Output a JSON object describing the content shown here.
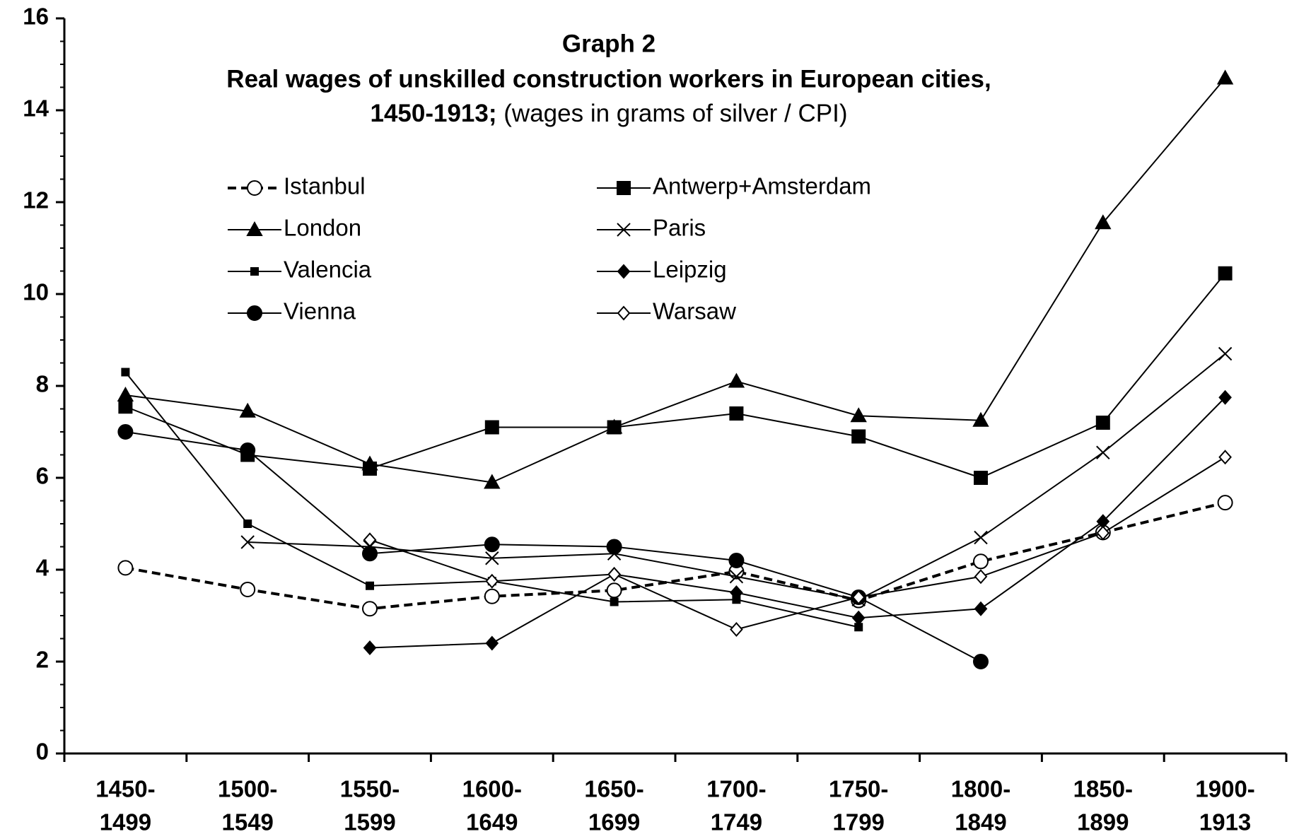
{
  "chart_data": {
    "type": "line",
    "title": [
      "Graph  2",
      "Real wages of unskilled construction workers in European cities,",
      "1450-1913;"
    ],
    "subtitle": "(wages in grams of silver / CPI)",
    "categories": [
      [
        "1450-",
        "1499"
      ],
      [
        "1500-",
        "1549"
      ],
      [
        "1550-",
        "1599"
      ],
      [
        "1600-",
        "1649"
      ],
      [
        "1650-",
        "1699"
      ],
      [
        "1700-",
        "1749"
      ],
      [
        "1750-",
        "1799"
      ],
      [
        "1800-",
        "1849"
      ],
      [
        "1850-",
        "1899"
      ],
      [
        "1900-",
        "1913"
      ]
    ],
    "ylim": [
      0,
      16
    ],
    "yticks": [
      0,
      2,
      4,
      6,
      8,
      10,
      12,
      14,
      16
    ],
    "yminor_step": 0.5,
    "grid": false,
    "legend": "top",
    "series": [
      {
        "name": "Istanbul",
        "color": "#000000",
        "marker": "open-circle",
        "dashed": true,
        "values": [
          4.04,
          3.57,
          3.15,
          3.42,
          3.55,
          3.96,
          3.33,
          4.18,
          4.81,
          5.46
        ]
      },
      {
        "name": "Antwerp+Amsterdam",
        "color": "#000000",
        "marker": "square",
        "values": [
          7.55,
          6.5,
          6.2,
          7.1,
          7.1,
          7.4,
          6.9,
          6.0,
          7.2,
          10.45
        ]
      },
      {
        "name": "London",
        "color": "#000000",
        "marker": "triangle",
        "values": [
          7.8,
          7.45,
          6.3,
          5.9,
          7.1,
          8.1,
          7.35,
          7.25,
          11.55,
          14.7
        ]
      },
      {
        "name": "Paris",
        "color": "#000000",
        "marker": "cross",
        "values": [
          null,
          4.6,
          4.5,
          4.25,
          4.35,
          3.85,
          3.35,
          4.7,
          6.55,
          8.7
        ]
      },
      {
        "name": "Valencia",
        "color": "#000000",
        "marker": "small-square",
        "values": [
          8.3,
          5.0,
          3.65,
          3.75,
          3.3,
          3.35,
          2.75,
          null,
          null,
          null
        ]
      },
      {
        "name": "Leipzig",
        "color": "#000000",
        "marker": "diamond",
        "values": [
          null,
          null,
          2.3,
          2.4,
          3.9,
          3.5,
          2.95,
          3.15,
          5.05,
          7.75
        ]
      },
      {
        "name": "Vienna",
        "color": "#000000",
        "marker": "circle",
        "values": [
          7.0,
          6.6,
          4.35,
          4.55,
          4.5,
          4.2,
          3.4,
          2.0,
          null,
          null
        ]
      },
      {
        "name": "Warsaw",
        "color": "#000000",
        "marker": "open-diamond",
        "values": [
          null,
          null,
          4.65,
          3.75,
          3.9,
          2.7,
          3.4,
          3.85,
          4.8,
          6.45
        ]
      }
    ]
  }
}
